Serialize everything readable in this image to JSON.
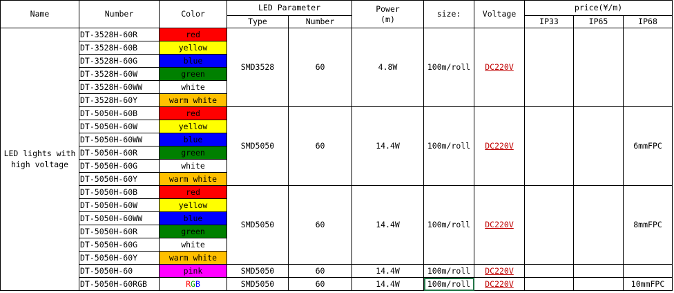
{
  "header": {
    "name": "Name",
    "number": "Number",
    "color": "Color",
    "led_parameter": "LED Parameter",
    "led_type": "Type",
    "led_number": "Number",
    "power_line1": "Power",
    "power_line2": "(m)",
    "size": "size:",
    "voltage": "Voltage",
    "price": "price(¥/m)",
    "ip33": "IP33",
    "ip65": "IP65",
    "ip68": "IP68"
  },
  "product_name": "LED lights with high voltage",
  "colors": {
    "red": "#ff0000",
    "yellow": "#ffff00",
    "blue": "#0000ff",
    "green": "#008000",
    "white": "#ffffff",
    "warm white": "#ffc000",
    "pink": "#ff00ff"
  },
  "groups": [
    {
      "type": "SMD3528",
      "led_number": "60",
      "power": "4.8W",
      "size": "100m/roll",
      "voltage": "DC220V",
      "ip33": "",
      "ip65": "",
      "ip68": "",
      "items": [
        {
          "number": "DT-3528H-60R",
          "color": "red"
        },
        {
          "number": "DT-3528H-60B",
          "color": "yellow"
        },
        {
          "number": "DT-3528H-60G",
          "color": "blue"
        },
        {
          "number": "DT-3528H-60W",
          "color": "green"
        },
        {
          "number": "DT-3528H-60WW",
          "color": "white"
        },
        {
          "number": "DT-3528H-60Y",
          "color": "warm white"
        }
      ]
    },
    {
      "type": "SMD5050",
      "led_number": "60",
      "power": "14.4W",
      "size": "100m/roll",
      "voltage": "DC220V",
      "ip33": "",
      "ip65": "",
      "ip68": "6mmFPC",
      "items": [
        {
          "number": "DT-5050H-60B",
          "color": "red"
        },
        {
          "number": "DT-5050H-60W",
          "color": "yellow"
        },
        {
          "number": "DT-5050H-60WW",
          "color": "blue"
        },
        {
          "number": "DT-5050H-60R",
          "color": "green"
        },
        {
          "number": "DT-5050H-60G",
          "color": "white"
        },
        {
          "number": "DT-5050H-60Y",
          "color": "warm white"
        }
      ]
    },
    {
      "type": "SMD5050",
      "led_number": "60",
      "power": "14.4W",
      "size": "100m/roll",
      "voltage": "DC220V",
      "ip33": "",
      "ip65": "",
      "ip68": "8mmFPC",
      "items": [
        {
          "number": "DT-5050H-60B",
          "color": "red"
        },
        {
          "number": "DT-5050H-60W",
          "color": "yellow"
        },
        {
          "number": "DT-5050H-60WW",
          "color": "blue"
        },
        {
          "number": "DT-5050H-60R",
          "color": "green"
        },
        {
          "number": "DT-5050H-60G",
          "color": "white"
        },
        {
          "number": "DT-5050H-60Y",
          "color": "warm white"
        }
      ]
    },
    {
      "type": "SMD5050",
      "led_number": "60",
      "power": "14.4W",
      "size": "100m/roll",
      "voltage": "DC220V",
      "ip33": "",
      "ip65": "",
      "ip68": "",
      "items": [
        {
          "number": "DT-5050H-60",
          "color": "pink"
        }
      ]
    },
    {
      "type": "SMD5050",
      "led_number": "60",
      "power": "14.4W",
      "size": "100m/roll",
      "voltage": "DC220V",
      "ip33": "",
      "ip65": "",
      "ip68": "10mmFPC",
      "items": [
        {
          "number": "DT-5050H-60RGB",
          "color": "RGB"
        }
      ]
    }
  ],
  "selected_cell": "4.size"
}
